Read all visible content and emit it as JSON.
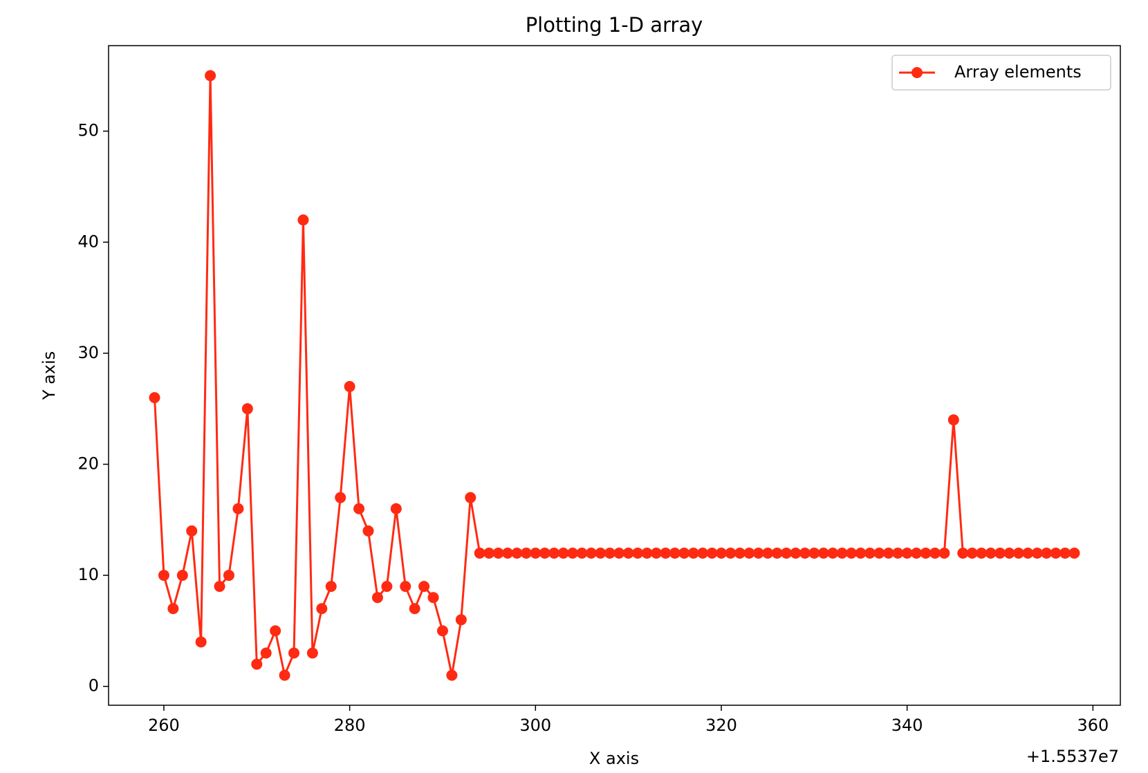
{
  "chart_data": {
    "type": "line",
    "title": "Plotting 1-D array",
    "xlabel": "X axis",
    "ylabel": "Y axis",
    "x_offset_label": "+1.5537e7",
    "x": [
      259,
      260,
      261,
      262,
      263,
      264,
      265,
      266,
      267,
      268,
      269,
      270,
      271,
      272,
      273,
      274,
      275,
      276,
      277,
      278,
      279,
      280,
      281,
      282,
      283,
      284,
      285,
      286,
      287,
      288,
      289,
      290,
      291,
      292,
      293,
      294,
      295,
      296,
      297,
      298,
      299,
      300,
      301,
      302,
      303,
      304,
      305,
      306,
      307,
      308,
      309,
      310,
      311,
      312,
      313,
      314,
      315,
      316,
      317,
      318,
      319,
      320,
      321,
      322,
      323,
      324,
      325,
      326,
      327,
      328,
      329,
      330,
      331,
      332,
      333,
      334,
      335,
      336,
      337,
      338,
      339,
      340,
      341,
      342,
      343,
      344,
      345,
      346,
      347,
      348,
      349,
      350,
      351,
      352,
      353,
      354,
      355,
      356,
      357,
      358
    ],
    "series": [
      {
        "name": "Array elements",
        "color": "#ff2a12",
        "values": [
          26,
          10,
          7,
          10,
          14,
          4,
          55,
          9,
          10,
          16,
          25,
          2,
          3,
          5,
          1,
          3,
          42,
          3,
          7,
          9,
          17,
          27,
          16,
          14,
          8,
          9,
          16,
          9,
          7,
          9,
          8,
          5,
          1,
          6,
          17,
          12,
          12,
          12,
          12,
          12,
          12,
          12,
          12,
          12,
          12,
          12,
          12,
          12,
          12,
          12,
          12,
          12,
          12,
          12,
          12,
          12,
          12,
          12,
          12,
          12,
          12,
          12,
          12,
          12,
          12,
          12,
          12,
          12,
          12,
          12,
          12,
          12,
          12,
          12,
          12,
          12,
          12,
          12,
          12,
          12,
          12,
          12,
          12,
          12,
          12,
          12,
          24,
          12,
          12,
          12,
          12,
          12,
          12,
          12,
          12,
          12,
          12,
          12,
          12,
          12
        ]
      }
    ],
    "xlim": [
      254.05,
      362.95
    ],
    "ylim": [
      -1.7,
      57.7
    ],
    "xticks": [
      260,
      280,
      300,
      320,
      340,
      360
    ],
    "yticks": [
      0,
      10,
      20,
      30,
      40,
      50
    ],
    "legend": "upper right"
  }
}
